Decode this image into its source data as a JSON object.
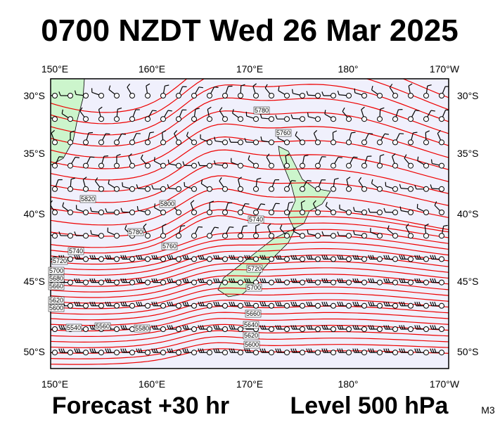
{
  "header": {
    "title": "0700 NZDT Wed 26 Mar 2025"
  },
  "map": {
    "top_labels": [
      "150°E",
      "160°E",
      "170°E",
      "180°",
      "170°W"
    ],
    "bottom_labels": [
      "150°E",
      "160°E",
      "170°E",
      "180°",
      "170°W"
    ],
    "left_labels": [
      "30°S",
      "35°S",
      "40°S",
      "45°S",
      "50°S"
    ],
    "right_labels": [
      "30°S",
      "35°S",
      "40°S",
      "45°S",
      "50°S"
    ],
    "contour_labels": [
      "5780",
      "5760",
      "5820",
      "5800",
      "5740",
      "5780",
      "5760",
      "5740",
      "5720",
      "5700",
      "5680",
      "5660",
      "5620",
      "5600",
      "5540",
      "5560",
      "5580",
      "5720",
      "5700",
      "5660",
      "5640",
      "5620",
      "5600"
    ]
  },
  "footer": {
    "forecast": "Forecast +30 hr",
    "level": "Level 500 hPa",
    "model": "M3"
  }
}
